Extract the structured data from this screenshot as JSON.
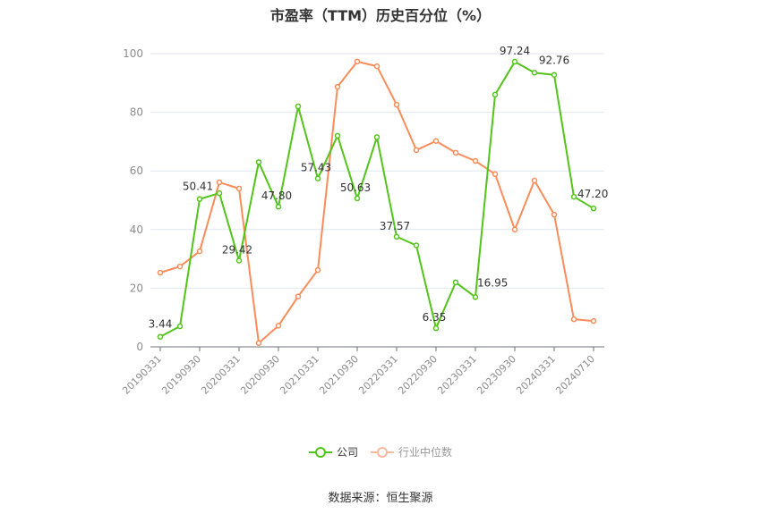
{
  "title": "市盈率（TTM）历史百分位（%）",
  "legend": {
    "company": {
      "label": "公司",
      "color": "#52c41a"
    },
    "industry": {
      "label": "行业中位数",
      "color": "#fa8c5a"
    }
  },
  "source": "数据来源：恒生聚源",
  "chart_data": {
    "type": "line",
    "title": "市盈率（TTM）历史百分位（%）",
    "xlabel": "",
    "ylabel": "",
    "ylim": [
      0,
      100
    ],
    "yticks": [
      0,
      20,
      40,
      60,
      80,
      100
    ],
    "grid": true,
    "legend_position": "bottom",
    "x": [
      "20190331",
      "20190630",
      "20190930",
      "20191231",
      "20200331",
      "20200630",
      "20200930",
      "20201231",
      "20210331",
      "20210630",
      "20210930",
      "20211231",
      "20220331",
      "20220630",
      "20220930",
      "20221231",
      "20230331",
      "20230630",
      "20230930",
      "20231231",
      "20240331",
      "20240630",
      "20240710"
    ],
    "xtick_labels": [
      "20190331",
      "20190930",
      "20200331",
      "20200930",
      "20210331",
      "20210930",
      "20220331",
      "20220930",
      "20230331",
      "20230930",
      "20240331",
      "20240710"
    ],
    "series": [
      {
        "name": "公司",
        "color": "#52c41a",
        "values": [
          3.44,
          7.0,
          50.41,
          52.4,
          29.42,
          63.0,
          47.8,
          82.0,
          57.43,
          72.0,
          50.63,
          71.5,
          37.57,
          34.6,
          6.35,
          22.0,
          16.95,
          86.0,
          97.24,
          93.5,
          92.76,
          51.2,
          47.2
        ],
        "labels": {
          "0": "3.44",
          "2": "50.41",
          "4": "29.42",
          "6": "47.80",
          "8": "57.43",
          "10": "50.63",
          "12": "37.57",
          "14": "6.35",
          "16": "16.95",
          "18": "97.24",
          "20": "92.76",
          "22": "47.20"
        }
      },
      {
        "name": "行业中位数",
        "color": "#fa8c5a",
        "values": [
          25.3,
          27.4,
          32.6,
          56.1,
          54.0,
          1.3,
          7.2,
          17.2,
          26.2,
          88.7,
          97.3,
          95.7,
          82.6,
          67.1,
          70.2,
          66.2,
          63.4,
          58.9,
          40.0,
          56.7,
          45.1,
          9.4,
          8.8
        ]
      }
    ]
  }
}
